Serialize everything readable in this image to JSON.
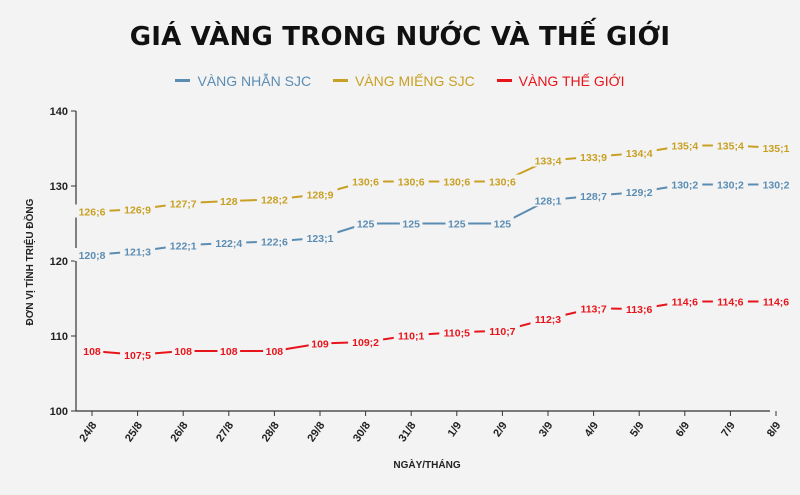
{
  "chart_data": {
    "type": "line",
    "title": "GIÁ VÀNG TRONG NƯỚC VÀ THẾ GIỚI",
    "xlabel": "NGÀY/THÁNG",
    "ylabel": "ĐƠN VỊ TÍNH TRIỆU ĐỒNG",
    "categories": [
      "24/8",
      "25/8",
      "26/8",
      "27/8",
      "28/8",
      "29/8",
      "30/8",
      "31/8",
      "1/9",
      "2/9",
      "3/9",
      "4/9",
      "5/9",
      "6/9",
      "7/9",
      "8/9"
    ],
    "ylim": [
      100,
      140
    ],
    "yticks": [
      "100",
      "110",
      "120",
      "130",
      "140"
    ],
    "legend_position": "top-center",
    "grid": false,
    "series": [
      {
        "name": "VÀNG NHẪN SJC",
        "color": "#5b8db3",
        "values": [
          120.8,
          121.3,
          122.1,
          122.4,
          122.6,
          123.1,
          125,
          125,
          125,
          125,
          128.1,
          128.7,
          129.2,
          130.2,
          130.2,
          130.2
        ],
        "labels": [
          "120;8",
          "121;3",
          "122;1",
          "122;4",
          "122;6",
          "123;1",
          "125",
          "125",
          "125",
          "125",
          "128;1",
          "128;7",
          "129;2",
          "130;2",
          "130;2",
          "130;2"
        ]
      },
      {
        "name": "VÀNG MIẾNG SJC",
        "color": "#c8a023",
        "values": [
          126.6,
          126.9,
          127.7,
          128,
          128.2,
          128.9,
          130.6,
          130.6,
          130.6,
          130.6,
          133.4,
          133.9,
          134.4,
          135.4,
          135.4,
          135.1
        ],
        "labels": [
          "126;6",
          "126;9",
          "127;7",
          "128",
          "128;2",
          "128;9",
          "130;6",
          "130;6",
          "130;6",
          "130;6",
          "133;4",
          "133;9",
          "134;4",
          "135;4",
          "135;4",
          "135;1"
        ]
      },
      {
        "name": "VÀNG THẾ GIỚI",
        "color": "#e8141b",
        "values": [
          108,
          107.5,
          108,
          108,
          108,
          109,
          109.2,
          110.1,
          110.5,
          110.7,
          112.3,
          113.7,
          113.6,
          114.6,
          114.6,
          114.6
        ],
        "labels": [
          "108",
          "107;5",
          "108",
          "108",
          "108",
          "109",
          "109;2",
          "110;1",
          "110;5",
          "110;7",
          "112;3",
          "113;7",
          "113;6",
          "114;6",
          "114;6",
          "114;6"
        ]
      }
    ]
  }
}
